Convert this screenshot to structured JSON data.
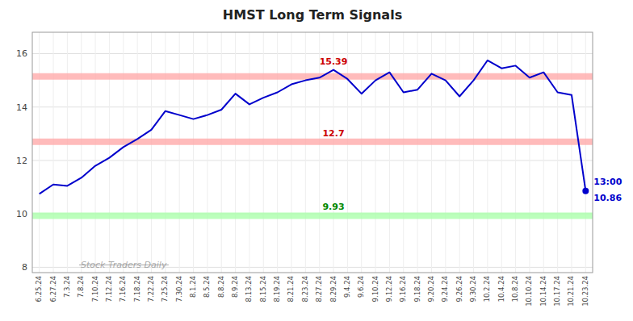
{
  "chart_data": {
    "type": "line",
    "title": "HMST Long Term Signals",
    "categories": [
      "6.25.24",
      "6.27.24",
      "7.3.24",
      "7.8.24",
      "7.10.24",
      "7.12.24",
      "7.16.24",
      "7.18.24",
      "7.22.24",
      "7.25.24",
      "7.30.24",
      "8.1.24",
      "8.5.24",
      "8.8.24",
      "8.9.24",
      "8.13.24",
      "8.15.24",
      "8.19.24",
      "8.21.24",
      "8.23.24",
      "8.27.24",
      "8.29.24",
      "9.4.24",
      "9.6.24",
      "9.10.24",
      "9.12.24",
      "9.16.24",
      "9.18.24",
      "9.20.24",
      "9.24.24",
      "9.26.24",
      "9.30.24",
      "10.2.24",
      "10.4.24",
      "10.8.24",
      "10.10.24",
      "10.14.24",
      "10.17.24",
      "10.21.24",
      "10.23.24"
    ],
    "series": [
      {
        "color": "#0000cc",
        "values": [
          10.75,
          11.1,
          11.05,
          11.35,
          11.8,
          12.1,
          12.5,
          12.8,
          13.15,
          13.85,
          13.7,
          13.55,
          13.7,
          13.9,
          14.5,
          14.1,
          14.35,
          14.55,
          14.85,
          15.0,
          15.1,
          15.39,
          15.05,
          14.5,
          15.0,
          15.3,
          14.55,
          14.65,
          15.25,
          15.0,
          14.4,
          15.0,
          15.75,
          15.45,
          15.55,
          15.1,
          15.3,
          14.55,
          14.45,
          10.86
        ]
      }
    ],
    "ylim": [
      7.8,
      16.8
    ],
    "yticks": [
      8,
      10,
      12,
      14,
      16
    ],
    "grid": true,
    "reference_lines": [
      {
        "value": 15.15,
        "color": "#ffaaaa"
      },
      {
        "value": 12.7,
        "color": "#ffaaaa"
      },
      {
        "value": 9.93,
        "color": "#aaffaa"
      }
    ],
    "annotations": [
      {
        "text": "15.39",
        "x": "8.29.24",
        "y": 15.39,
        "color": "#cc0000"
      },
      {
        "text": "12.7",
        "x": "8.29.24",
        "y": 12.7,
        "color": "#cc0000"
      },
      {
        "text": "9.93",
        "x": "8.29.24",
        "y": 9.93,
        "color": "#008800"
      }
    ],
    "end_labels": {
      "texts": [
        "13:00",
        "10.86"
      ],
      "color": "#0000cc"
    },
    "watermark": {
      "text": "Stock Traders Daily",
      "color": "#888888"
    },
    "background": "#ffffff"
  }
}
